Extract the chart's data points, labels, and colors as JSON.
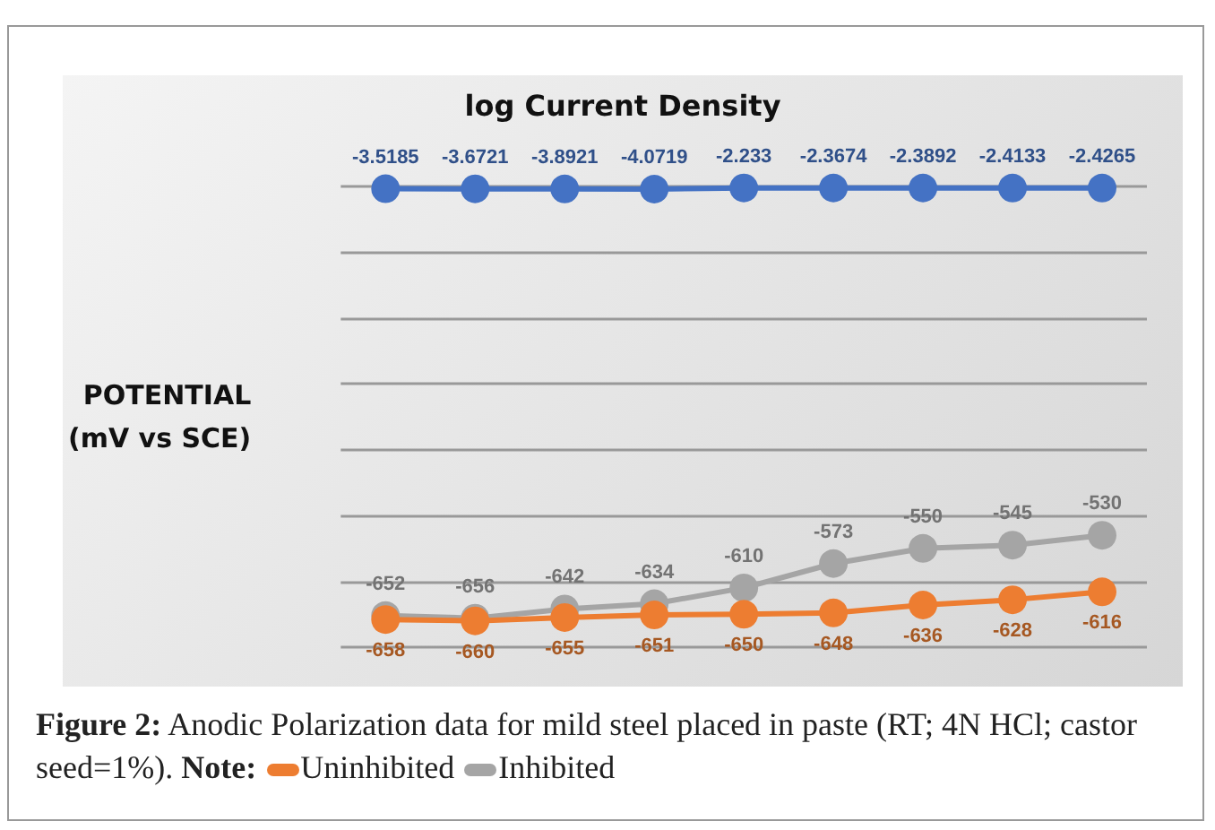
{
  "chart_data": {
    "type": "line",
    "title": "log Current Density",
    "ylabel": "POTENTIAL\n(mV vs SCE)",
    "annotations": [
      "Figure 2:",
      " Anodic Polarization data for mild steel placed in paste (RT; 4N HCl; castor seed=1%). ",
      "Note:"
    ],
    "categories": [
      null,
      null,
      null,
      null,
      null,
      null,
      null,
      null,
      null
    ],
    "series": [
      {
        "color": "#4472c4",
        "values": [
          -3.5185,
          -3.6721,
          -3.8921,
          -4.0719,
          -2.233,
          -2.3674,
          -2.3892,
          -2.4133,
          -2.4265
        ]
      },
      {
        "name": "Uninhibited",
        "color": "#ed7d31",
        "values": [
          -658,
          -660,
          -655,
          -651,
          -650,
          -648,
          -636,
          -628,
          -616
        ]
      },
      {
        "name": "Inhibited",
        "color": "#a5a5a5",
        "values": [
          -652,
          -656,
          -642,
          -634,
          -610,
          -573,
          -550,
          -545,
          -530
        ]
      }
    ],
    "ylim": [
      -700,
      0
    ],
    "yticks": [
      {
        "value": -700,
        "label": null
      },
      {
        "value": -600,
        "label": null
      },
      {
        "value": -500,
        "label": null
      },
      {
        "value": -400,
        "label": null
      },
      {
        "value": -300,
        "label": null
      },
      {
        "value": -200,
        "label": null
      },
      {
        "value": -100,
        "label": null
      },
      {
        "value": 0,
        "label": null
      }
    ],
    "grid": "y",
    "legend": "bottom",
    "data_labels": true,
    "marker": "circle",
    "line_style": "solid"
  }
}
